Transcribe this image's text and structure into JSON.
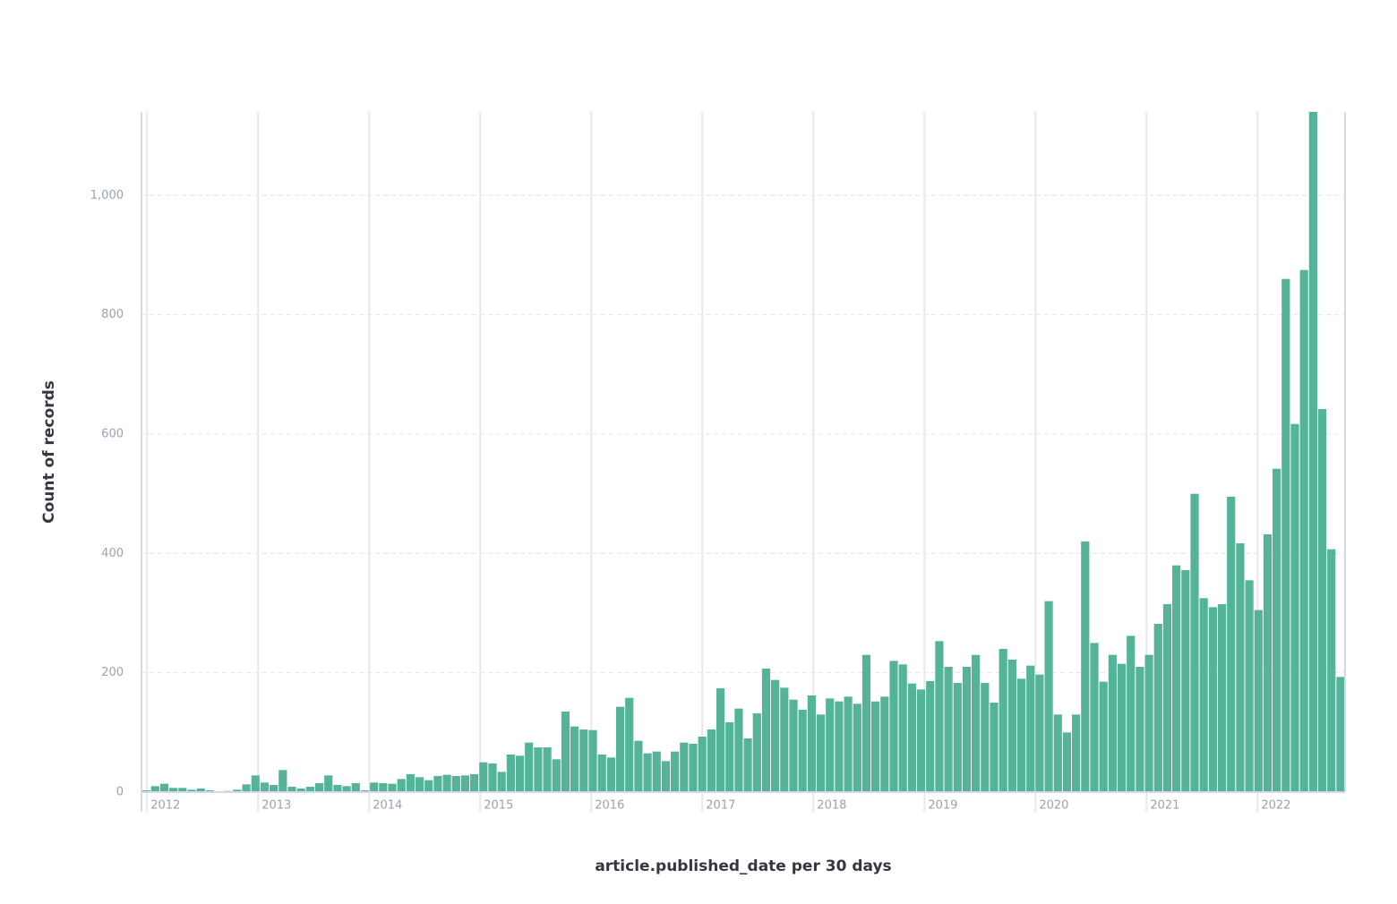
{
  "chart_data": {
    "type": "histogram",
    "xlabel": "article.published_date per 30 days",
    "ylabel": "Count of records",
    "color": "#54b399",
    "grid": true,
    "bins": [
      2011.95,
      2012.0321,
      2012.1142,
      2012.1963,
      2012.2784,
      2012.3605,
      2012.4426,
      2012.5247,
      2012.6068,
      2012.6889,
      2012.771,
      2012.8531,
      2012.9352,
      2013.0173,
      2013.0994,
      2013.1815,
      2013.2636,
      2013.3457,
      2013.4278,
      2013.5099,
      2013.592,
      2013.6741,
      2013.7562,
      2013.8383,
      2013.9204,
      2014.0025,
      2014.0846,
      2014.1667,
      2014.2488,
      2014.3309,
      2014.413,
      2014.4951,
      2014.5772,
      2014.6593,
      2014.7414,
      2014.8235,
      2014.9056,
      2014.9877,
      2015.0698,
      2015.1519,
      2015.234,
      2015.3161,
      2015.3982,
      2015.4803,
      2015.5624,
      2015.6445,
      2015.7266,
      2015.8087,
      2015.8908,
      2015.9729,
      2016.055,
      2016.1371,
      2016.2192,
      2016.3013,
      2016.3834,
      2016.4655,
      2016.5476,
      2016.6297,
      2016.7118,
      2016.7939,
      2016.876,
      2016.9581,
      2017.0402,
      2017.1223,
      2017.2044,
      2017.2865,
      2017.3686,
      2017.4507,
      2017.5328,
      2017.6149,
      2017.697,
      2017.7791,
      2017.8612,
      2017.9433,
      2018.0254,
      2018.1075,
      2018.1896,
      2018.2717,
      2018.3538,
      2018.4359,
      2018.518,
      2018.6001,
      2018.6822,
      2018.7643,
      2018.8464,
      2018.9285,
      2019.0106,
      2019.0927,
      2019.1748,
      2019.2569,
      2019.339,
      2019.4211,
      2019.5032,
      2019.5853,
      2019.6674,
      2019.7495,
      2019.8316,
      2019.9137,
      2019.9958,
      2020.0779,
      2020.16,
      2020.2421,
      2020.3242,
      2020.4063,
      2020.4884,
      2020.5705,
      2020.6526,
      2020.7347,
      2020.8168,
      2020.8989,
      2020.981,
      2021.0631,
      2021.1452,
      2021.2273,
      2021.3094,
      2021.3915,
      2021.4736,
      2021.5557,
      2021.6378,
      2021.7199,
      2021.802,
      2021.8841,
      2021.9662,
      2022.0483,
      2022.1304,
      2022.2125,
      2022.2946,
      2022.3767,
      2022.4588,
      2022.5409,
      2022.623,
      2022.7051,
      2022.7872
    ],
    "values": [
      3,
      10,
      14,
      7,
      7,
      4,
      6,
      3,
      0,
      2,
      4,
      13,
      28,
      16,
      12,
      37,
      9,
      6,
      9,
      15,
      28,
      12,
      10,
      15,
      3,
      16,
      15,
      14,
      22,
      30,
      25,
      20,
      27,
      29,
      27,
      28,
      30,
      50,
      48,
      34,
      63,
      61,
      83,
      75,
      75,
      55,
      135,
      110,
      105,
      104,
      63,
      58,
      143,
      158,
      86,
      65,
      68,
      52,
      68,
      83,
      81,
      93,
      105,
      174,
      117,
      140,
      90,
      132,
      207,
      188,
      175,
      155,
      138,
      162,
      130,
      157,
      152,
      160,
      148,
      230,
      152,
      160,
      220,
      214,
      182,
      172,
      186,
      253,
      210,
      183,
      210,
      230,
      183,
      150,
      240,
      222,
      190,
      212,
      197,
      320,
      130,
      100,
      130,
      420,
      250,
      185,
      230,
      215,
      262,
      210,
      230,
      282,
      315,
      380,
      372,
      500,
      325,
      310,
      315,
      495,
      417,
      355,
      305,
      432,
      542,
      860,
      617,
      875,
      1150,
      642,
      407,
      193
    ],
    "xlim": [
      2011.95,
      2022.7872
    ],
    "xticks": [
      2012,
      2013,
      2014,
      2015,
      2016,
      2017,
      2018,
      2019,
      2020,
      2021,
      2022
    ],
    "ylim": [
      0,
      1140
    ],
    "yticks": [
      0,
      200,
      400,
      600,
      800,
      {
        "value": 1000,
        "label": "1,000"
      }
    ]
  }
}
